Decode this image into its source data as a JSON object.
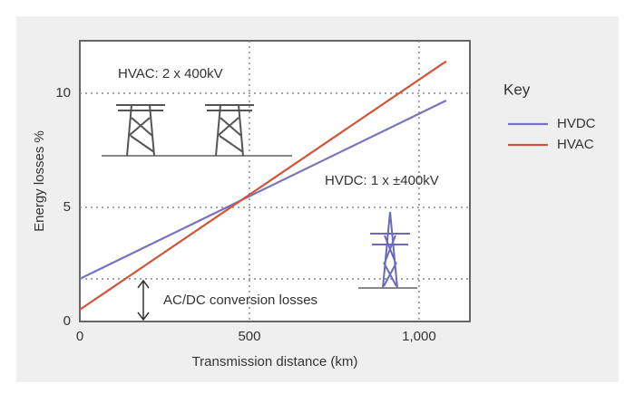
{
  "chart_data": {
    "type": "line",
    "x_label": "Transmission distance (km)",
    "y_label": "Energy losses %",
    "legend_title": "Key",
    "annotations": [
      "HVAC: 2 x 400kV",
      "HVDC: 1 x ±400kV",
      "AC/DC conversion losses"
    ],
    "x": [
      0,
      1080
    ],
    "series": [
      {
        "name": "HVDC",
        "color": "#7674bf",
        "values": [
          1.87,
          9.68
        ]
      },
      {
        "name": "HVAC",
        "color": "#d0553a",
        "values": [
          0.52,
          11.4
        ]
      }
    ],
    "xlim": [
      0,
      1150
    ],
    "ylim": [
      0,
      12.3
    ],
    "xticks": [
      0,
      500,
      {
        "value": 1000,
        "label": "1,000"
      }
    ],
    "yticks": [
      0,
      5,
      10
    ],
    "grid": true
  }
}
